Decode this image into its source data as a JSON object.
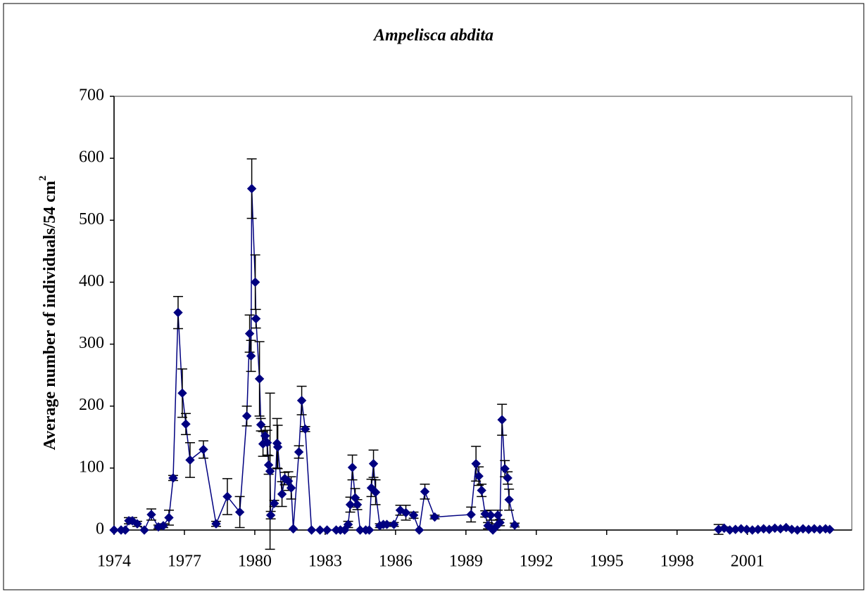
{
  "chart_data": {
    "type": "scatter",
    "title": "Ampelisca abdita",
    "y_label": "Average number of individuals/54 cm",
    "y_label_sup": "2",
    "xlim": [
      1974,
      2005.45
    ],
    "xticks": [
      1974,
      1977,
      1980,
      1983,
      1986,
      1989,
      1992,
      1995,
      1998,
      2001
    ],
    "ylim": [
      0,
      700
    ],
    "yticks": [
      0,
      100,
      200,
      300,
      400,
      500,
      600,
      700
    ],
    "grid": false,
    "series": [
      {
        "name": "Ampelisca abdita",
        "color": "#000080",
        "x": [
          1974.0,
          1974.3,
          1974.48,
          1974.63,
          1974.78,
          1974.99,
          1975.29,
          1975.59,
          1975.89,
          1976.1,
          1976.34,
          1976.52,
          1976.73,
          1976.91,
          1977.06,
          1977.24,
          1977.81,
          1978.35,
          1978.83,
          1979.36,
          1979.66,
          1979.78,
          1979.84,
          1979.87,
          1980.02,
          1980.05,
          1980.2,
          1980.26,
          1980.35,
          1980.44,
          1980.53,
          1980.59,
          1980.65,
          1980.68,
          1980.83,
          1980.95,
          1980.98,
          1981.16,
          1981.28,
          1981.43,
          1981.55,
          1981.64,
          1981.88,
          1982.0,
          1982.15,
          1982.42,
          1982.78,
          1983.08,
          1983.47,
          1983.65,
          1983.83,
          1983.98,
          1984.07,
          1984.16,
          1984.28,
          1984.37,
          1984.49,
          1984.73,
          1984.88,
          1984.97,
          1985.06,
          1985.15,
          1985.33,
          1985.48,
          1985.63,
          1985.93,
          1986.2,
          1986.44,
          1986.77,
          1987.01,
          1987.25,
          1987.67,
          1989.22,
          1989.43,
          1989.55,
          1989.67,
          1989.82,
          1989.94,
          1990.06,
          1990.15,
          1990.27,
          1990.36,
          1990.45,
          1990.54,
          1990.66,
          1990.78,
          1990.84,
          1991.08,
          null,
          1999.77,
          2000.01,
          2000.25,
          2000.49,
          2000.73,
          2000.97,
          2001.21,
          2001.45,
          2001.69,
          2001.93,
          2002.17,
          2002.41,
          2002.65,
          2002.89,
          2003.13,
          2003.37,
          2003.61,
          2003.85,
          2004.09,
          2004.33,
          2004.51
        ],
        "values": [
          0,
          0,
          0,
          15,
          15,
          10,
          0,
          25,
          5,
          7,
          20,
          84,
          351,
          221,
          171,
          113,
          130,
          10,
          54,
          29,
          184,
          317,
          281,
          551,
          400,
          341,
          244,
          170,
          139,
          152,
          141,
          105,
          95,
          24,
          43,
          140,
          134,
          58,
          83,
          79,
          68,
          2,
          126,
          209,
          163,
          0,
          0,
          0,
          0,
          0,
          0,
          9,
          41,
          101,
          52,
          41,
          0,
          0,
          0,
          68,
          107,
          61,
          7,
          9,
          9,
          9,
          32,
          28,
          24,
          0,
          62,
          21,
          25,
          107,
          87,
          64,
          26,
          7,
          24,
          0,
          5,
          24,
          12,
          178,
          99,
          84,
          49,
          8,
          null,
          1,
          3,
          0,
          1,
          2,
          1,
          0,
          1,
          2,
          1,
          3,
          2,
          4,
          1,
          0,
          2,
          1,
          2,
          1,
          2,
          1
        ],
        "errors": [
          null,
          null,
          null,
          5,
          5,
          4,
          null,
          9,
          3,
          3,
          12,
          4,
          26,
          39,
          17,
          28,
          14,
          4,
          29,
          25,
          16,
          30,
          25,
          48,
          44,
          15,
          60,
          10,
          20,
          15,
          20,
          15,
          126,
          6,
          5,
          40,
          35,
          20,
          10,
          15,
          18,
          null,
          10,
          23,
          4,
          null,
          null,
          null,
          null,
          null,
          null,
          5,
          12,
          20,
          15,
          8,
          null,
          null,
          null,
          14,
          22,
          20,
          3,
          3,
          3,
          3,
          8,
          12,
          5,
          null,
          12,
          3,
          12,
          28,
          15,
          10,
          5,
          5,
          8,
          null,
          5,
          8,
          5,
          25,
          13,
          10,
          17,
          3,
          null,
          8,
          2,
          null,
          null,
          1,
          null,
          null,
          null,
          1,
          null,
          2,
          null,
          1,
          null,
          null,
          null,
          null,
          1,
          null,
          null,
          null
        ]
      }
    ]
  }
}
